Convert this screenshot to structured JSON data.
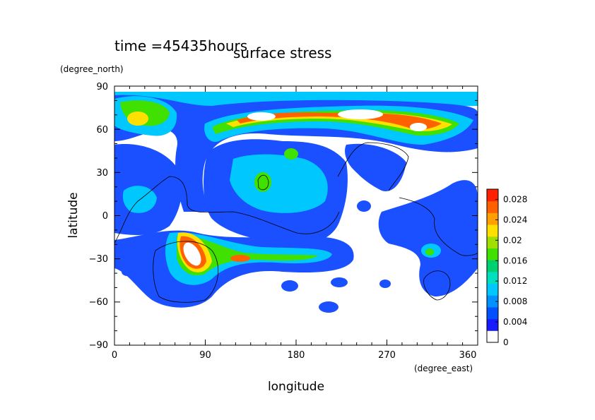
{
  "header": {
    "time_text": "time =45435hours",
    "title": "surface stress"
  },
  "chart_data": {
    "type": "heatmap",
    "title": "surface stress",
    "xlabel": "longitude",
    "ylabel": "latitude",
    "x_unit": "(degree_east)",
    "y_unit": "(degree_north)",
    "xlim": [
      0,
      360
    ],
    "ylim": [
      -90,
      90
    ],
    "x_ticks": [
      "0",
      "90",
      "180",
      "270",
      "360"
    ],
    "y_ticks": [
      "90",
      "60",
      "30",
      "0",
      "−30",
      "−60",
      "−90"
    ],
    "x_tick_values": [
      0,
      90,
      180,
      270,
      360
    ],
    "y_tick_values": [
      90,
      60,
      30,
      0,
      -30,
      -60,
      -90
    ],
    "grid": false,
    "colorbar": {
      "min": 0,
      "max": 0.03,
      "tick_values": [
        0,
        0.004,
        0.008,
        0.012,
        0.016,
        0.02,
        0.024,
        0.028
      ],
      "tick_labels": [
        "0",
        "0.004",
        "0.008",
        "0.012",
        "0.016",
        "0.02",
        "0.024",
        "0.028"
      ],
      "colors": [
        "#ffffff",
        "#1a1aff",
        "#0050ff",
        "#0090ff",
        "#00c8ff",
        "#00e0c0",
        "#00d070",
        "#40e000",
        "#a0e000",
        "#ffe000",
        "#ffa000",
        "#ff6000",
        "#ff2000"
      ]
    },
    "features": [
      {
        "label": "northern polar band (~70N)",
        "lon_range": [
          100,
          350
        ],
        "lat": 70,
        "value_max": 0.03
      },
      {
        "label": "southern band (~-30 to -35)",
        "lon_range": [
          60,
          220
        ],
        "lat": -32,
        "value_max": 0.03
      },
      {
        "label": "peak near 70E",
        "lon": 70,
        "lat": -40,
        "value": 0.03
      }
    ]
  }
}
